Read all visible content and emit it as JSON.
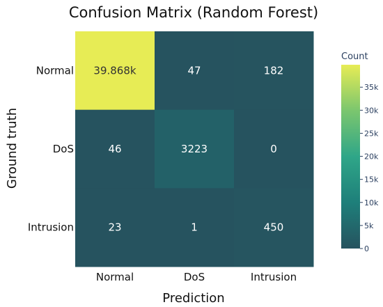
{
  "chart_data": {
    "type": "heatmap",
    "title": "Confusion Matrix (Random Forest)",
    "xlabel": "Prediction",
    "ylabel": "Ground truth",
    "x_categories": [
      "Normal",
      "DoS",
      "Intrusion"
    ],
    "y_categories": [
      "Normal",
      "DoS",
      "Intrusion"
    ],
    "values": [
      [
        39868,
        47,
        182
      ],
      [
        46,
        3223,
        0
      ],
      [
        23,
        1,
        450
      ]
    ],
    "cell_labels": [
      [
        "39.868k",
        "47",
        "182"
      ],
      [
        "46",
        "3223",
        "0"
      ],
      [
        "23",
        "1",
        "450"
      ]
    ],
    "colorscale": "viridis-like",
    "colorscale_stops": [
      "#26535f",
      "#1e7f7a",
      "#2fa688",
      "#7bc66e",
      "#e7ec55"
    ],
    "colorbar": {
      "title": "Count",
      "range": [
        0,
        39868
      ],
      "ticks": [
        0,
        5000,
        10000,
        15000,
        20000,
        25000,
        30000,
        35000
      ],
      "tick_labels": [
        "0",
        "5k",
        "10k",
        "15k",
        "20k",
        "25k",
        "30k",
        "35k"
      ]
    },
    "grid": false
  }
}
